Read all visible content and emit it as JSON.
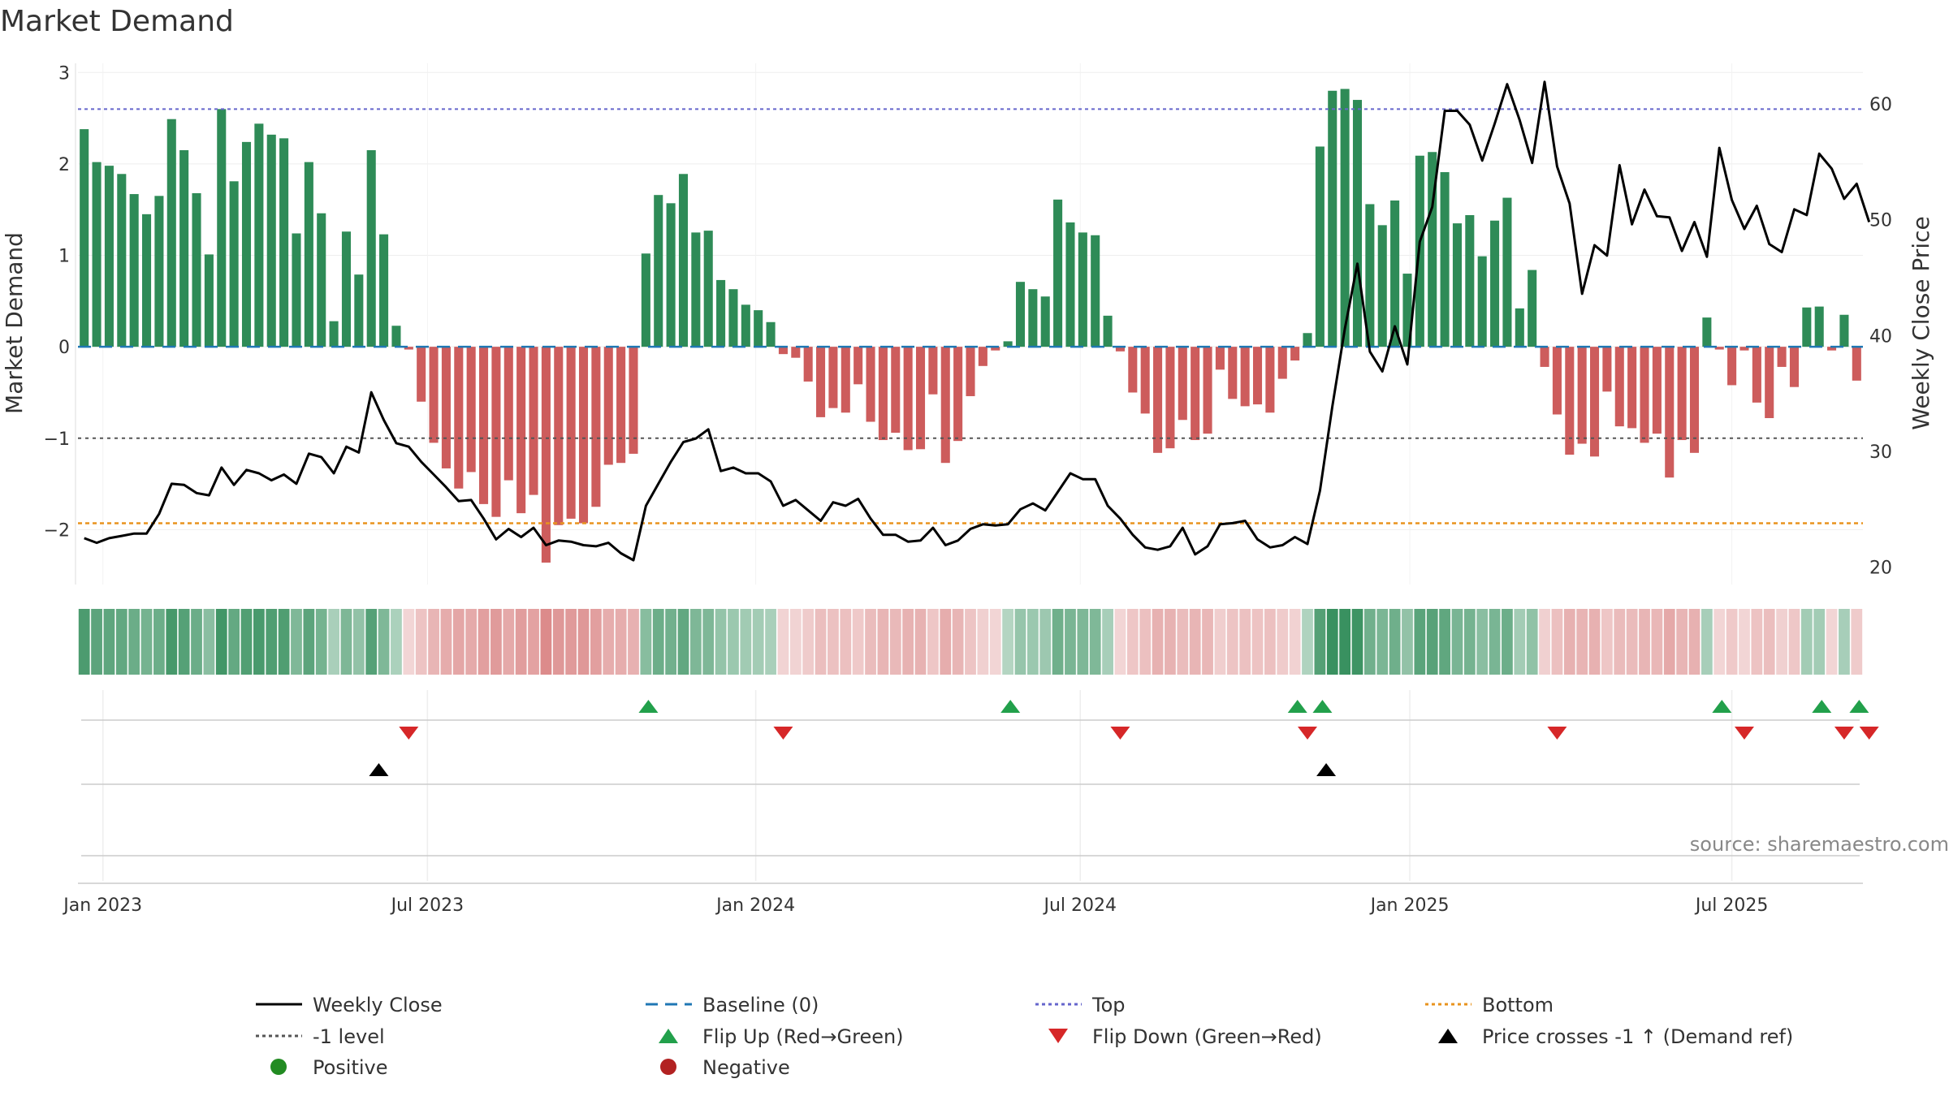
{
  "chart_data": {
    "type": "bar",
    "title": "Market Demand",
    "ylabel_left": "Market Demand",
    "ylabel_right": "Weekly Close Price",
    "ylim_left": [
      -2.6,
      3.1
    ],
    "ylim_right": [
      18.5,
      63.5
    ],
    "left_ticks": [
      {
        "value": 3,
        "label": "3"
      },
      {
        "value": 2,
        "label": "2"
      },
      {
        "value": 1,
        "label": "1"
      },
      {
        "value": 0,
        "label": "0"
      },
      {
        "value": -1,
        "label": "−1"
      },
      {
        "value": -2,
        "label": "−2"
      }
    ],
    "right_ticks": [
      {
        "value": 60,
        "label": "60"
      },
      {
        "value": 50,
        "label": "50"
      },
      {
        "value": 40,
        "label": "40"
      },
      {
        "value": 30,
        "label": "30"
      },
      {
        "value": 20,
        "label": "20"
      }
    ],
    "x_ticks": [
      {
        "week": 1.5,
        "label": "Jan 2023"
      },
      {
        "week": 27.5,
        "label": "Jul 2023"
      },
      {
        "week": 53.8,
        "label": "Jan 2024"
      },
      {
        "week": 79.8,
        "label": "Jul 2024"
      },
      {
        "week": 106.2,
        "label": "Jan 2025"
      },
      {
        "week": 132,
        "label": "Jul 2025"
      }
    ],
    "top_level": 2.6,
    "bottom_level": -1.93,
    "neg_one_level": -1,
    "demand": [
      2.38,
      2.02,
      1.98,
      1.89,
      1.67,
      1.45,
      1.65,
      2.49,
      2.15,
      1.68,
      1.01,
      2.6,
      1.81,
      2.24,
      2.44,
      2.32,
      2.28,
      1.24,
      2.02,
      1.46,
      0.28,
      1.26,
      0.79,
      2.15,
      1.23,
      0.23,
      -0.03,
      -0.6,
      -1.05,
      -1.33,
      -1.55,
      -1.37,
      -1.72,
      -1.86,
      -1.46,
      -1.82,
      -1.62,
      -2.36,
      -1.95,
      -1.88,
      -1.93,
      -1.75,
      -1.29,
      -1.27,
      -1.17,
      1.02,
      1.66,
      1.57,
      1.89,
      1.25,
      1.27,
      0.73,
      0.63,
      0.46,
      0.4,
      0.27,
      -0.08,
      -0.12,
      -0.38,
      -0.77,
      -0.67,
      -0.72,
      -0.41,
      -0.82,
      -1.02,
      -0.94,
      -1.13,
      -1.12,
      -0.52,
      -1.27,
      -1.03,
      -0.54,
      -0.21,
      -0.04,
      0.06,
      0.71,
      0.63,
      0.55,
      1.61,
      1.36,
      1.25,
      1.22,
      0.34,
      -0.05,
      -0.5,
      -0.73,
      -1.16,
      -1.11,
      -0.8,
      -1.02,
      -0.95,
      -0.25,
      -0.57,
      -0.65,
      -0.63,
      -0.72,
      -0.35,
      -0.15,
      0.15,
      2.19,
      2.8,
      2.82,
      2.7,
      1.56,
      1.33,
      1.6,
      0.8,
      2.09,
      2.13,
      1.91,
      1.35,
      1.44,
      0.99,
      1.38,
      1.63,
      0.42,
      0.84,
      -0.22,
      -0.74,
      -1.18,
      -1.06,
      -1.2,
      -0.49,
      -0.87,
      -0.89,
      -1.05,
      -0.95,
      -1.43,
      -1.02,
      -1.16,
      0.32,
      -0.03,
      -0.42,
      -0.04,
      -0.61,
      -0.78,
      -0.22,
      -0.44,
      0.43,
      0.44,
      -0.04,
      0.35,
      -0.37
    ],
    "price": [
      22.5,
      22.1,
      22.5,
      22.7,
      22.9,
      22.9,
      24.6,
      27.2,
      27.1,
      26.4,
      26.2,
      28.6,
      27.1,
      28.4,
      28.1,
      27.5,
      28.0,
      27.2,
      29.8,
      29.5,
      28.1,
      30.4,
      29.9,
      35.1,
      32.7,
      30.7,
      30.4,
      29.1,
      28.0,
      26.9,
      25.7,
      25.8,
      24.2,
      22.4,
      23.3,
      22.6,
      23.4,
      21.9,
      22.3,
      22.2,
      21.9,
      21.8,
      22.1,
      21.2,
      20.6,
      25.3,
      27.2,
      29.1,
      30.8,
      31.1,
      31.9,
      28.3,
      28.6,
      28.1,
      28.1,
      27.4,
      25.3,
      25.8,
      24.9,
      24.0,
      25.6,
      25.3,
      25.9,
      24.2,
      22.8,
      22.8,
      22.2,
      22.3,
      23.4,
      21.9,
      22.3,
      23.3,
      23.7,
      23.6,
      23.7,
      25.0,
      25.5,
      24.9,
      26.5,
      28.1,
      27.6,
      27.6,
      25.3,
      24.2,
      22.8,
      21.7,
      21.5,
      21.8,
      23.4,
      21.1,
      21.8,
      23.7,
      23.8,
      24.0,
      22.4,
      21.7,
      21.9,
      22.6,
      22.0,
      26.6,
      33.9,
      40.6,
      46.2,
      38.6,
      36.9,
      40.8,
      37.5,
      48.1,
      51.1,
      59.4,
      59.4,
      58.2,
      55.1,
      58.3,
      61.7,
      58.6,
      54.9,
      61.9,
      54.6,
      51.4,
      43.6,
      47.8,
      46.9,
      54.7,
      49.6,
      52.6,
      50.3,
      50.2,
      47.3,
      49.8,
      46.8,
      56.2,
      51.7,
      49.2,
      51.2,
      47.9,
      47.2,
      50.9,
      50.4,
      55.7,
      54.4,
      51.8,
      53.1,
      49.8
    ],
    "flip_up_weeks": [
      45.2,
      74.2,
      97.2,
      99.2,
      131.2,
      139.2,
      142.2
    ],
    "flip_down_weeks": [
      26,
      56,
      83,
      98,
      118,
      133,
      141,
      143
    ],
    "price_cross_weeks": [
      23.6,
      99.5
    ],
    "source": "source: sharemaestro.com",
    "legend": [
      {
        "label": "Weekly Close",
        "kind": "line",
        "color": "#000000"
      },
      {
        "label": "Baseline (0)",
        "kind": "dash",
        "color": "#1f77b4"
      },
      {
        "label": "Top",
        "kind": "dot",
        "color": "#6666cc"
      },
      {
        "label": "Bottom",
        "kind": "dot",
        "color": "#e8931e"
      },
      {
        "label": "-1 level",
        "kind": "dot",
        "color": "#555555"
      },
      {
        "label": "Flip Up (Red→Green)",
        "kind": "tri-up",
        "color": "#22a04b"
      },
      {
        "label": "Flip Down (Green→Red)",
        "kind": "tri-down",
        "color": "#d62728"
      },
      {
        "label": "Price crosses -1 ↑ (Demand ref)",
        "kind": "tri-up",
        "color": "#000000"
      },
      {
        "label": "Positive",
        "kind": "circle",
        "color": "#228b22"
      },
      {
        "label": "Negative",
        "kind": "circle",
        "color": "#b22222"
      }
    ],
    "colors": {
      "positive_bar": "#2e8b57",
      "negative_bar": "#cd5c5c",
      "price_line": "#000000",
      "baseline": "#1f77b4",
      "top": "#6666cc",
      "bottom": "#e8931e",
      "neg_one": "#555555",
      "flip_up": "#22a04b",
      "flip_down": "#d62728",
      "price_cross": "#000000"
    }
  }
}
